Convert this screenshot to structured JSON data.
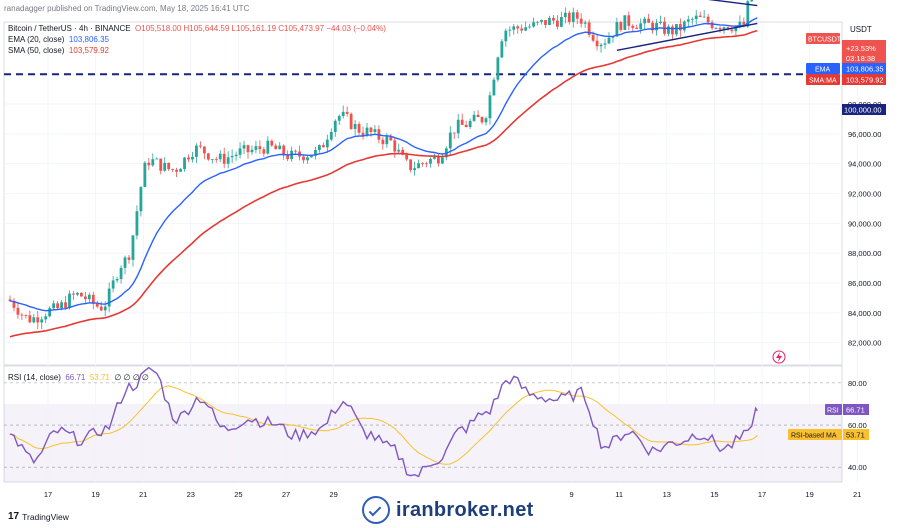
{
  "header": {
    "published": "ranadagger published on TradingView.com, May 18, 2025 16:41 UTC",
    "symbol_line": "Bitcoin / TetherUS · 4h · BINANCE",
    "ohlc": "O105,518.00  H105,644.59  L105,161.19  C105,473.97  −44.03 (−0.04%)",
    "ema_label": "EMA (20, close)",
    "ema_value": "103,806.35",
    "sma_label": "SMA (50, close)",
    "sma_value": "103,579.92",
    "currency": "USDT"
  },
  "price_tags": {
    "symbol": "BTCUSDT",
    "change": "+23.53%",
    "countdown": "03:18:38",
    "ema_tag": "EMA",
    "ema_value": "103,806.35",
    "sma_tag": "SMA:MA",
    "sma_value": "103,579.92"
  },
  "rsi_panel": {
    "label": "RSI (14, close)",
    "rsi_value": "66.71",
    "ma_value": "53.71",
    "extra": "∅  ∅  ∅  ∅",
    "rsi_tag": "RSI",
    "ma_tag": "RSI-based MA"
  },
  "footer": {
    "tradingview": "TradingView",
    "brand": "iranbroker.net"
  },
  "colors": {
    "up": "#26a69a",
    "down": "#ef5350",
    "ema": "#2962ff",
    "sma": "#e53935",
    "rsi": "#7e57c2",
    "rsi_ma": "#fbc02d",
    "support": "#1a237e"
  },
  "chart_data": [
    {
      "type": "candlestick",
      "title": "Bitcoin / TetherUS · 4h · BINANCE",
      "ylabel": "USDT",
      "ylim": [
        80500,
        103500
      ],
      "y_ticks": [
        82000,
        84000,
        86000,
        88000,
        90000,
        92000,
        94000,
        96000,
        98000,
        100000
      ],
      "y_tick_labels": [
        "82,000.00",
        "84,000.00",
        "86,000.00",
        "88,000.00",
        "90,000.00",
        "92,000.00",
        "94,000.00",
        "96,000.00",
        "98,000.00",
        "100,000.00"
      ],
      "x_tick_labels": [
        "17",
        "19",
        "21",
        "23",
        "25",
        "27",
        "29",
        "9",
        "11",
        "13",
        "15",
        "17",
        "19",
        "21"
      ],
      "x_tick_days": [
        0,
        2,
        4,
        6,
        8,
        10,
        12,
        22,
        24,
        26,
        28,
        30,
        32,
        34
      ],
      "last_day": 31.5,
      "price_path": [
        [
          0,
          84900
        ],
        [
          1,
          83600
        ],
        [
          2,
          84200
        ],
        [
          3,
          85200
        ],
        [
          4,
          84400
        ],
        [
          5,
          87500
        ],
        [
          6,
          94200
        ],
        [
          7,
          93600
        ],
        [
          8,
          95000
        ],
        [
          9,
          94300
        ],
        [
          10,
          94800
        ],
        [
          11,
          95100
        ],
        [
          12,
          94500
        ],
        [
          13,
          94700
        ],
        [
          14,
          97200
        ],
        [
          15,
          96200
        ],
        [
          16,
          95600
        ],
        [
          17,
          93800
        ],
        [
          18,
          94300
        ],
        [
          19,
          96500
        ],
        [
          20,
          97000
        ],
        [
          21,
          103000
        ],
        [
          22,
          103200
        ],
        [
          23,
          103600
        ],
        [
          24,
          103800
        ],
        [
          25,
          102200
        ],
        [
          26,
          103500
        ],
        [
          27,
          103300
        ],
        [
          28,
          102900
        ],
        [
          29,
          103700
        ],
        [
          30,
          103300
        ],
        [
          31,
          103200
        ],
        [
          31.3,
          105474
        ]
      ],
      "support_level": 100000,
      "pattern": "symmetrical triangle",
      "triangle_upper": [
        [
          24.5,
          106000
        ],
        [
          31.4,
          104600
        ]
      ],
      "triangle_lower": [
        [
          25.5,
          101600
        ],
        [
          31.4,
          103400
        ]
      ],
      "series": [
        {
          "name": "EMA (20, close)",
          "last": 103806.35
        },
        {
          "name": "SMA (50, close)",
          "last": 103579.92
        }
      ]
    },
    {
      "type": "line",
      "title": "RSI (14, close)",
      "ylim": [
        33,
        88
      ],
      "y_ticks": [
        40,
        60,
        80
      ],
      "band": [
        30,
        70
      ],
      "rsi_path": [
        [
          0,
          55
        ],
        [
          1,
          43
        ],
        [
          2,
          57
        ],
        [
          3,
          53
        ],
        [
          4,
          58
        ],
        [
          5,
          78
        ],
        [
          6,
          86
        ],
        [
          7,
          63
        ],
        [
          8,
          73
        ],
        [
          9,
          58
        ],
        [
          10,
          63
        ],
        [
          11,
          61
        ],
        [
          12,
          55
        ],
        [
          13,
          58
        ],
        [
          14,
          71
        ],
        [
          15,
          56
        ],
        [
          16,
          49
        ],
        [
          17,
          36
        ],
        [
          18,
          44
        ],
        [
          19,
          58
        ],
        [
          20,
          66
        ],
        [
          21,
          82
        ],
        [
          22,
          74
        ],
        [
          23,
          72
        ],
        [
          24,
          75
        ],
        [
          25,
          50
        ],
        [
          26,
          57
        ],
        [
          27,
          48
        ],
        [
          28,
          52
        ],
        [
          29,
          56
        ],
        [
          30,
          49
        ],
        [
          31,
          55
        ],
        [
          31.3,
          66.71
        ]
      ],
      "series": [
        {
          "name": "RSI (14, close)",
          "last": 66.71
        },
        {
          "name": "RSI-based MA",
          "last": 53.71
        }
      ]
    }
  ]
}
